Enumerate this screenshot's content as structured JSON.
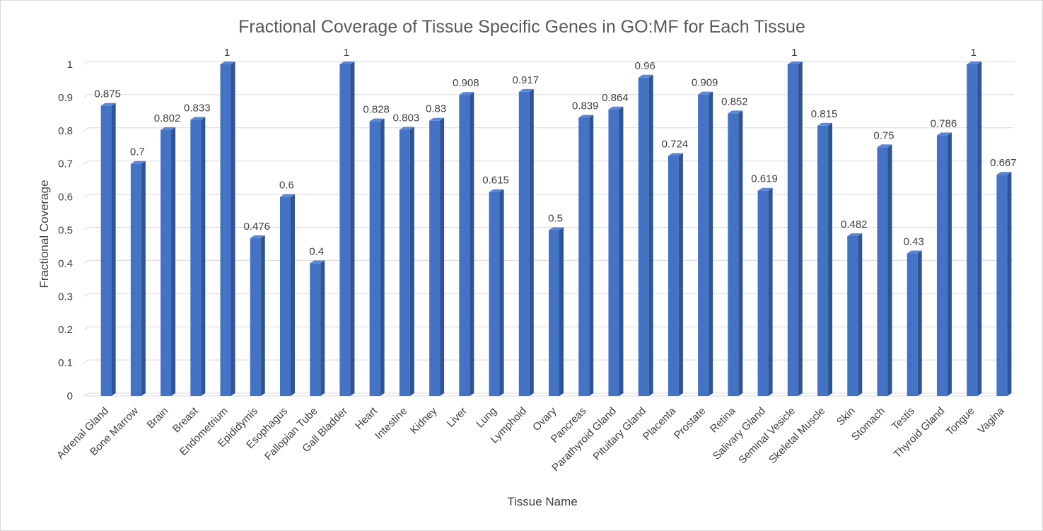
{
  "chart_data": {
    "type": "bar",
    "title": "Fractional Coverage of Tissue Specific Genes in GO:MF for Each Tissue",
    "xlabel": "Tissue Name",
    "ylabel": "Fractional Coverage",
    "ylim": [
      0,
      1
    ],
    "yticks": [
      "0",
      "0.1",
      "0.2",
      "0.3",
      "0.4",
      "0.5",
      "0.6",
      "0.7",
      "0.8",
      "0.9",
      "1"
    ],
    "grid": true,
    "legend": "none",
    "bar_color": "#4472C4",
    "bar_side_color": "#2F5496",
    "bar_top_color": "#5B86D6",
    "categories": [
      "Adrenal Gland",
      "Bone Marrow",
      "Brain",
      "Breast",
      "Endometrium",
      "Epididymis",
      "Esophagus",
      "Fallopian Tube",
      "Gall Bladder",
      "Heart",
      "Intestine",
      "Kidney",
      "Liver",
      "Lung",
      "Lymphoid",
      "Ovary",
      "Pancreas",
      "Parathyroid Gland",
      "Pituitary Gland",
      "Placenta",
      "Prostate",
      "Retina",
      "Salivary Gland",
      "Seminal Vesicle",
      "Skeletal Muscle",
      "Skin",
      "Stomach",
      "Testis",
      "Thyroid Gland",
      "Tongue",
      "Vagina"
    ],
    "values": [
      0.875,
      0.7,
      0.802,
      0.833,
      1,
      0.476,
      0.6,
      0.4,
      1,
      0.828,
      0.803,
      0.83,
      0.908,
      0.615,
      0.917,
      0.5,
      0.839,
      0.864,
      0.96,
      0.724,
      0.909,
      0.852,
      0.619,
      1,
      0.815,
      0.482,
      0.75,
      0.43,
      0.786,
      1,
      0.667
    ],
    "data_labels": [
      "0.875",
      "0.7",
      "0.802",
      "0.833",
      "1",
      "0.476",
      "0.6",
      "0.4",
      "1",
      "0.828",
      "0.803",
      "0.83",
      "0.908",
      "0.615",
      "0.917",
      "0.5",
      "0.839",
      "0.864",
      "0.96",
      "0.724",
      "0.909",
      "0.852",
      "0.619",
      "1",
      "0.815",
      "0.482",
      "0.75",
      "0.43",
      "0.786",
      "1",
      "0.667"
    ]
  }
}
